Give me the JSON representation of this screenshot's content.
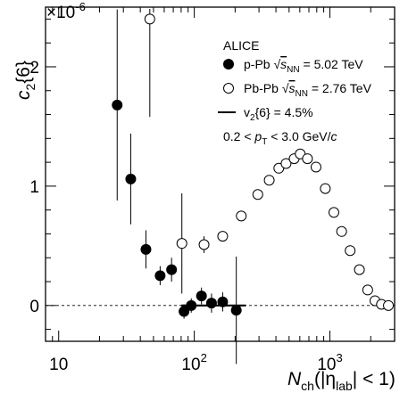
{
  "chart_data": {
    "type": "scatter",
    "x_scale": "log",
    "xlim": [
      8,
      3000
    ],
    "ylim": [
      -0.3,
      2.5
    ],
    "y_multiplier_label": "×10",
    "y_multiplier_exp": "-6",
    "ylabel": {
      "base": "c",
      "sub": "2",
      "tail": "{6}"
    },
    "xlabel": {
      "base": "N",
      "sub": "ch",
      "mid": "(|η",
      "sub2": "lab",
      "tail": "| < 1)"
    },
    "x_ticks": [
      {
        "value": 10,
        "base": "10",
        "exp": ""
      },
      {
        "value": 100,
        "base": "10",
        "exp": "2"
      },
      {
        "value": 1000,
        "base": "10",
        "exp": "3"
      }
    ],
    "y_ticks": [
      {
        "value": 0,
        "label": "0"
      },
      {
        "value": 1,
        "label": "1"
      },
      {
        "value": 2,
        "label": "2"
      }
    ],
    "series": [
      {
        "name": "p-Pb",
        "style": "filled-circle",
        "color": "#000000",
        "points": [
          {
            "x": 27,
            "y": 1.68,
            "err": 0.8
          },
          {
            "x": 34,
            "y": 1.06,
            "err": 0.38
          },
          {
            "x": 44,
            "y": 0.47,
            "err": 0.16
          },
          {
            "x": 56,
            "y": 0.25,
            "err": 0.08
          },
          {
            "x": 68,
            "y": 0.3,
            "err": 0.1
          },
          {
            "x": 84,
            "y": -0.05,
            "err": 0.06
          },
          {
            "x": 95,
            "y": 0.0,
            "err": 0.06
          },
          {
            "x": 113,
            "y": 0.08,
            "err": 0.07
          },
          {
            "x": 134,
            "y": 0.02,
            "err": 0.08
          },
          {
            "x": 162,
            "y": 0.03,
            "err": 0.08
          },
          {
            "x": 204,
            "y": -0.04,
            "err": 0.45
          }
        ]
      },
      {
        "name": "Pb-Pb",
        "style": "open-circle",
        "color": "#000000",
        "points": [
          {
            "x": 47,
            "y": 2.4,
            "err": 0.82
          },
          {
            "x": 81,
            "y": 0.52,
            "err": 0.42
          },
          {
            "x": 118,
            "y": 0.51,
            "err": 0.07
          },
          {
            "x": 162,
            "y": 0.58,
            "err": 0.03
          },
          {
            "x": 222,
            "y": 0.75,
            "err": 0
          },
          {
            "x": 294,
            "y": 0.93,
            "err": 0
          },
          {
            "x": 357,
            "y": 1.05,
            "err": 0
          },
          {
            "x": 420,
            "y": 1.15,
            "err": 0
          },
          {
            "x": 475,
            "y": 1.19,
            "err": 0
          },
          {
            "x": 545,
            "y": 1.23,
            "err": 0
          },
          {
            "x": 604,
            "y": 1.27,
            "err": 0
          },
          {
            "x": 683,
            "y": 1.23,
            "err": 0
          },
          {
            "x": 790,
            "y": 1.16,
            "err": 0
          },
          {
            "x": 925,
            "y": 0.98,
            "err": 0
          },
          {
            "x": 1070,
            "y": 0.78,
            "err": 0
          },
          {
            "x": 1220,
            "y": 0.62,
            "err": 0
          },
          {
            "x": 1410,
            "y": 0.46,
            "err": 0
          },
          {
            "x": 1650,
            "y": 0.3,
            "err": 0
          },
          {
            "x": 1900,
            "y": 0.13,
            "err": 0
          },
          {
            "x": 2150,
            "y": 0.04,
            "err": 0
          },
          {
            "x": 2400,
            "y": 0.01,
            "err": 0
          },
          {
            "x": 2700,
            "y": 0.0,
            "err": 0
          }
        ]
      },
      {
        "name": "v2{6} = 4.5%",
        "style": "line",
        "color": "#000000",
        "x_range": [
          80,
          240
        ],
        "y": 0.0
      }
    ],
    "reference_line": {
      "y": 0,
      "style": "dashed"
    },
    "legend": {
      "position": "top-right",
      "title": "ALICE",
      "entries": [
        {
          "symbol": "filled-circle",
          "text": "p-Pb ",
          "sqrt": "s",
          "sqrt_sub": "NN",
          "tail": " = 5.02 TeV"
        },
        {
          "symbol": "open-circle",
          "text": "Pb-Pb ",
          "sqrt": "s",
          "sqrt_sub": "NN",
          "tail": " = 2.76 TeV"
        },
        {
          "symbol": "line",
          "text": "v",
          "sub": "2",
          "tail": "{6} = 4.5%"
        }
      ],
      "cut": {
        "pre": "0.2 < ",
        "var": "p",
        "var_sub": "T",
        "post": " < 3.0 GeV/",
        "unit_it": "c"
      }
    }
  }
}
